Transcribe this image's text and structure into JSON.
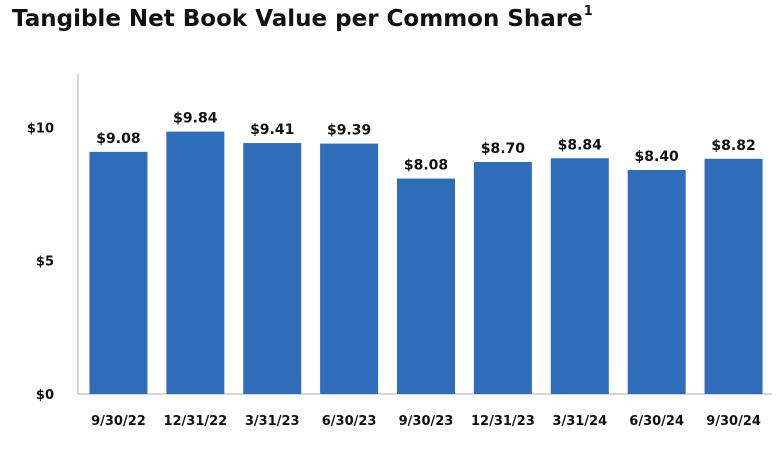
{
  "title": "Tangible Net Book Value per Common Share",
  "title_footnote": "1",
  "chart_data": {
    "type": "bar",
    "categories": [
      "9/30/22",
      "12/31/22",
      "3/31/23",
      "6/30/23",
      "9/30/23",
      "12/31/23",
      "3/31/24",
      "6/30/24",
      "9/30/24"
    ],
    "values": [
      9.08,
      9.84,
      9.41,
      9.39,
      8.08,
      8.7,
      8.84,
      8.4,
      8.82
    ],
    "data_labels": [
      "$9.08",
      "$9.84",
      "$9.41",
      "$9.39",
      "$8.08",
      "$8.70",
      "$8.84",
      "$8.40",
      "$8.82"
    ],
    "y_ticks": [
      0,
      5,
      10
    ],
    "y_tick_labels": [
      "$0",
      "$5",
      "$10"
    ],
    "ylim": [
      0,
      12
    ],
    "grid": false,
    "bar_color": "#2f6dba"
  }
}
